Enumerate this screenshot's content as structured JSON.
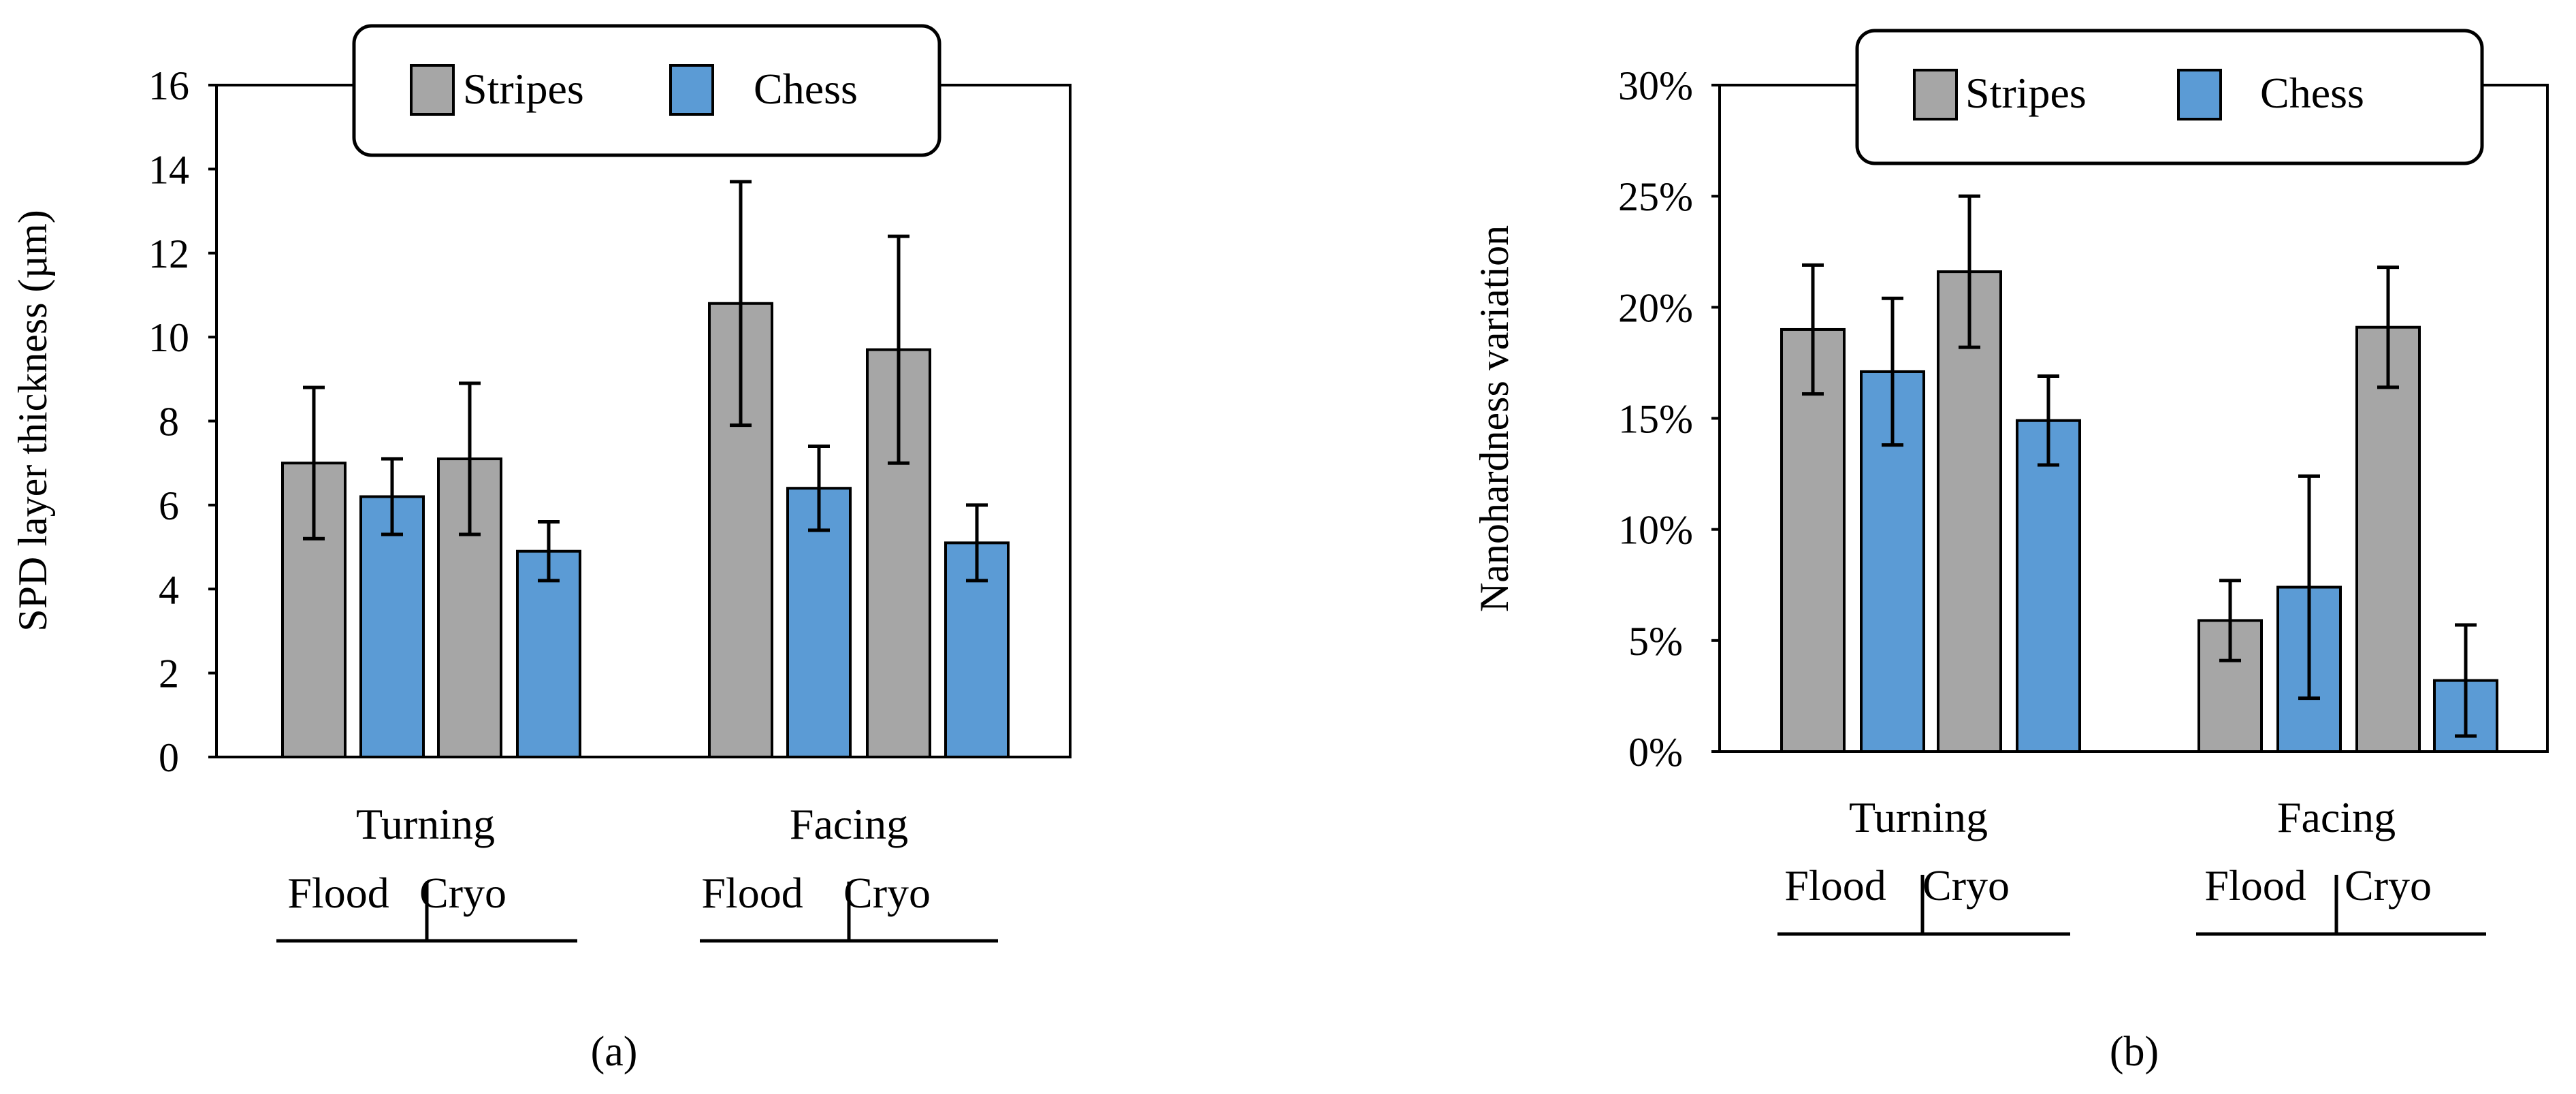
{
  "chart_data": [
    {
      "type": "bar",
      "panel": "(a)",
      "title": "",
      "ylabel": "SPD layer thickness (µm)",
      "ylim": [
        0,
        16
      ],
      "yticks": [
        "0",
        "2",
        "4",
        "6",
        "8",
        "10",
        "12",
        "14",
        "16"
      ],
      "legend": [
        "Stripes",
        "Chess"
      ],
      "groups": [
        {
          "name": "Turning",
          "sub": [
            "Flood",
            "Cryo"
          ]
        },
        {
          "name": "Facing",
          "sub": [
            "Flood",
            "Cryo"
          ]
        }
      ],
      "series": [
        {
          "name": "Stripes",
          "values": [
            7.0,
            7.1,
            10.8,
            9.7
          ],
          "errors": [
            1.8,
            1.8,
            2.9,
            2.7
          ]
        },
        {
          "name": "Chess",
          "values": [
            6.2,
            4.9,
            6.4,
            5.1
          ],
          "errors": [
            0.9,
            0.7,
            1.0,
            0.9
          ]
        }
      ]
    },
    {
      "type": "bar",
      "panel": "(b)",
      "title": "",
      "ylabel": "Nanohardness variation",
      "ylim": [
        0,
        0.3
      ],
      "yticks": [
        "0%",
        "5%",
        "10%",
        "15%",
        "20%",
        "25%",
        "30%"
      ],
      "legend": [
        "Stripes",
        "Chess"
      ],
      "groups": [
        {
          "name": "Turning",
          "sub": [
            "Flood",
            "Cryo"
          ]
        },
        {
          "name": "Facing",
          "sub": [
            "Flood",
            "Cryo"
          ]
        }
      ],
      "series": [
        {
          "name": "Stripes",
          "values": [
            0.19,
            0.216,
            0.059,
            0.191
          ],
          "errors": [
            0.029,
            0.034,
            0.018,
            0.027
          ]
        },
        {
          "name": "Chess",
          "values": [
            0.171,
            0.149,
            0.074,
            0.032
          ],
          "errors": [
            0.033,
            0.02,
            0.05,
            0.025
          ]
        }
      ]
    }
  ],
  "colors": {
    "stripes": "#a6a6a6",
    "chess": "#5b9bd5",
    "edge": "#000000"
  }
}
